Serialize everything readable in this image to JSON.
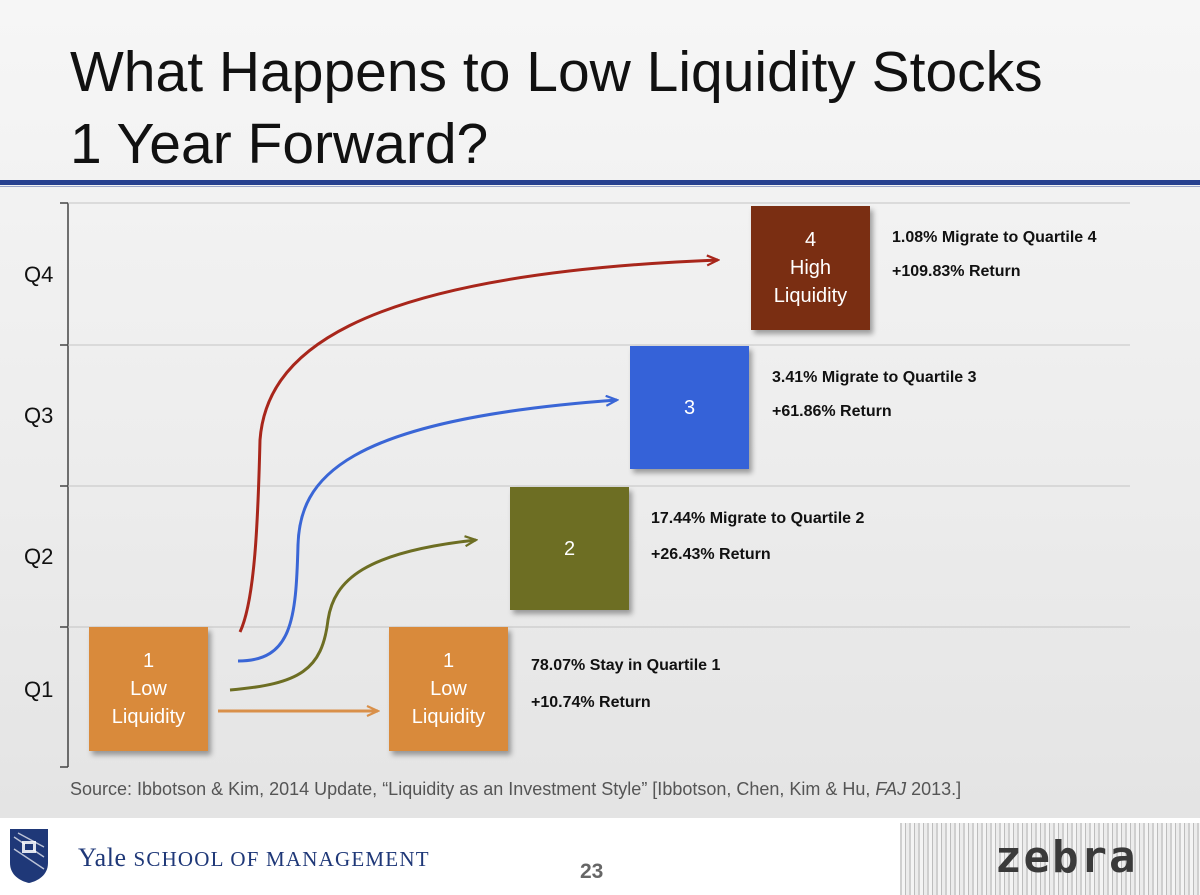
{
  "title_line1": "What Happens to Low Liquidity Stocks",
  "title_line2": "1 Year Forward?",
  "quartile_labels": [
    "Q4",
    "Q3",
    "Q2",
    "Q1"
  ],
  "start_box": {
    "lines": [
      "1",
      "Low",
      "Liquidity"
    ],
    "color": "#d98a3b"
  },
  "boxes": [
    {
      "id": "q1",
      "lines": [
        "1",
        "Low",
        "Liquidity"
      ],
      "color": "#d98a3b",
      "annotation_line1": "78.07% Stay in Quartile 1",
      "annotation_line2": "+10.74% Return",
      "arrow_color": "#d9904a"
    },
    {
      "id": "q2",
      "lines": [
        "2"
      ],
      "color": "#6d6e23",
      "annotation_line1": "17.44% Migrate to Quartile 2",
      "annotation_line2": "+26.43% Return",
      "arrow_color": "#6d6e23"
    },
    {
      "id": "q3",
      "lines": [
        "3"
      ],
      "color": "#3562d8",
      "annotation_line1": "3.41% Migrate to Quartile 3",
      "annotation_line2": "+61.86% Return",
      "arrow_color": "#3a66d6"
    },
    {
      "id": "q4",
      "lines": [
        "4",
        "High",
        "Liquidity"
      ],
      "color": "#7a2e12",
      "annotation_line1": "1.08% Migrate to Quartile 4",
      "annotation_line2": "+109.83% Return",
      "arrow_color": "#a8261b"
    }
  ],
  "source": {
    "prefix": "Source: Ibbotson & Kim, 2014 Update, “Liquidity as an Investment Style” [Ibbotson, Chen, Kim & Hu, ",
    "italic": "FAJ",
    "suffix": " 2013.]"
  },
  "footer": {
    "yale_word": "Yale",
    "school_text": "SCHOOL OF MANAGEMENT",
    "page_number": "23",
    "zebra_logo_text": "zebra"
  },
  "colors": {
    "title_rule": "#27418f",
    "footer_text": "#1f3878"
  }
}
